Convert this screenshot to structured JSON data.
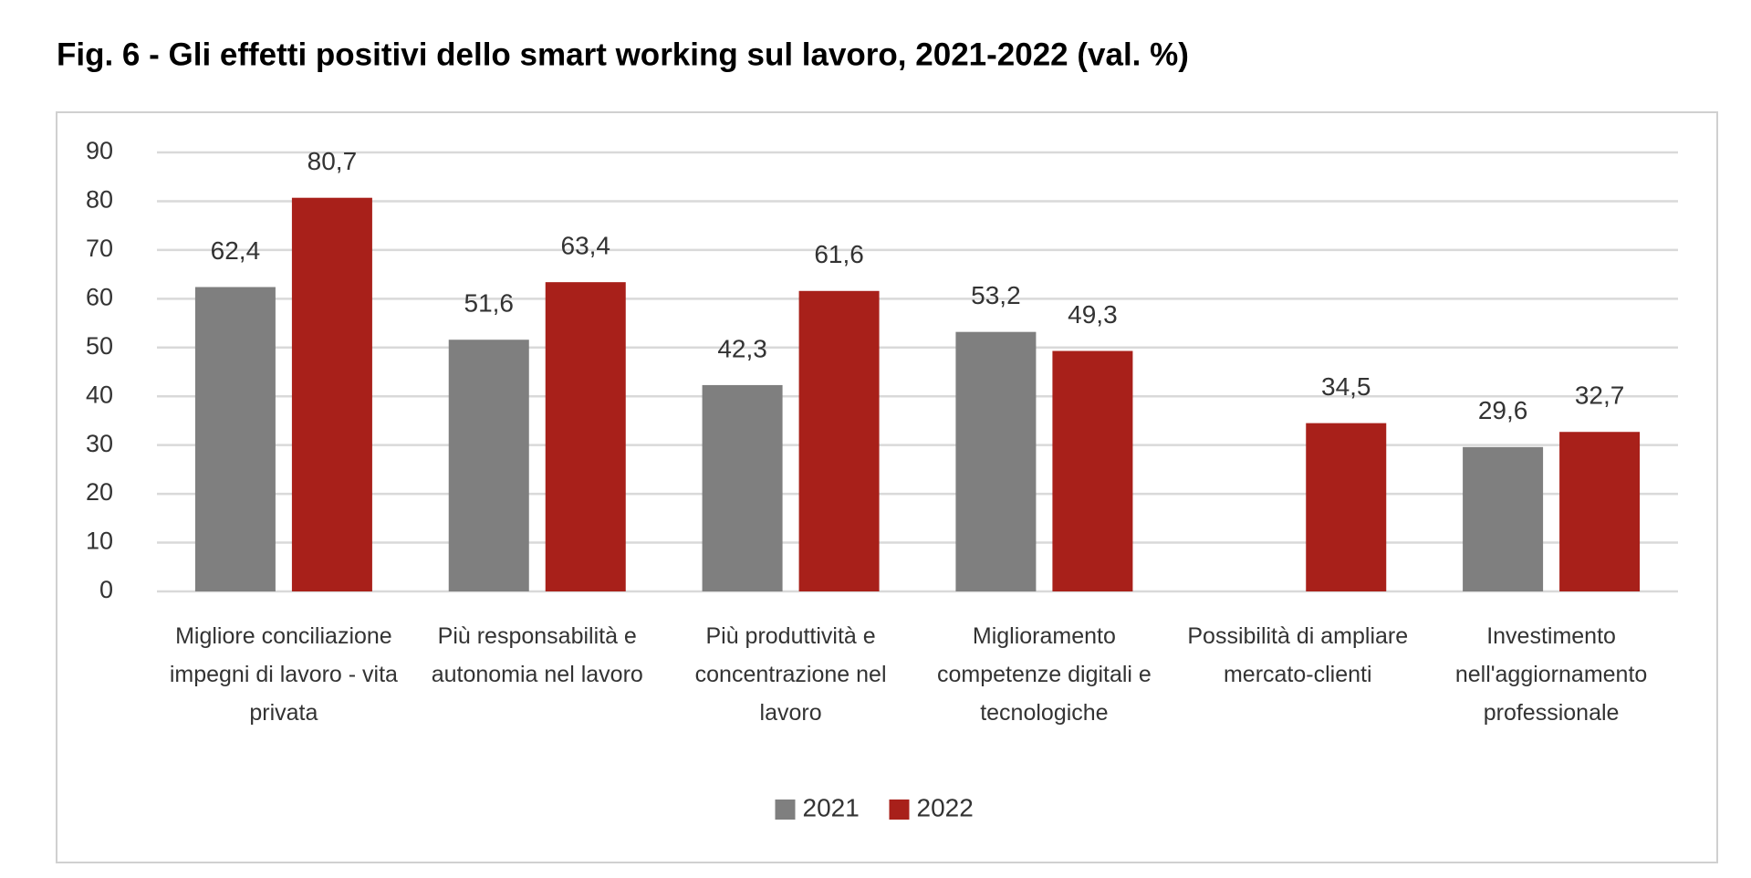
{
  "chart_data": {
    "type": "bar",
    "title": "Fig. 6 - Gli effetti positivi dello smart working sul lavoro, 2021-2022 (val. %)",
    "categories": [
      "Migliore conciliazione impegni di lavoro - vita privata",
      "Più responsabilità e autonomia nel lavoro",
      "Più produttività e concentrazione nel lavoro",
      "Miglioramento competenze digitali e tecnologiche",
      "Possibilità di ampliare mercato-clienti",
      "Investimento nell'aggiornamento professionale"
    ],
    "series": [
      {
        "name": "2021",
        "color": "#7f7f7f",
        "values": [
          62.4,
          51.6,
          42.3,
          53.2,
          null,
          29.6
        ],
        "value_labels": [
          "62,4",
          "51,6",
          "42,3",
          "53,2",
          null,
          "29,6"
        ]
      },
      {
        "name": "2022",
        "color": "#a8201a",
        "values": [
          80.7,
          63.4,
          61.6,
          49.3,
          34.5,
          32.7
        ],
        "value_labels": [
          "80,7",
          "63,4",
          "61,6",
          "49,3",
          "34,5",
          "32,7"
        ]
      }
    ],
    "ylim": [
      0,
      90
    ],
    "yticks": [
      0,
      10,
      20,
      30,
      40,
      50,
      60,
      70,
      80,
      90
    ],
    "grid": true,
    "legend": "bottom"
  }
}
